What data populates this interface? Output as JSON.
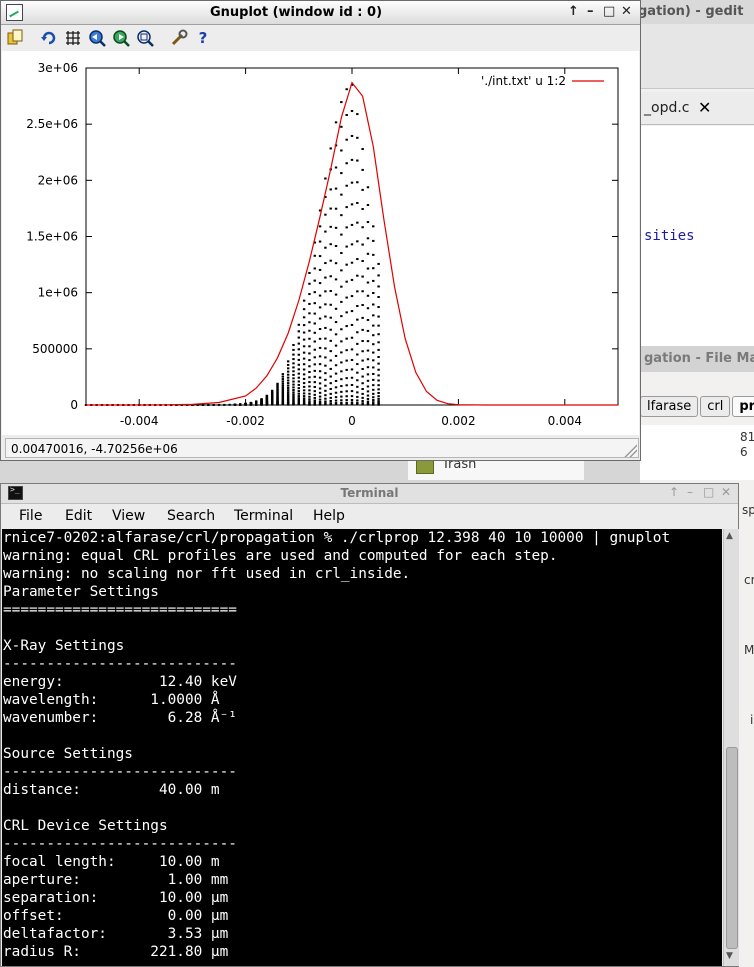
{
  "gedit": {
    "title": "gation) - gedit",
    "tab_label": "_opd.c",
    "tab_close": "✕",
    "code_fragment": "sities"
  },
  "file_manager": {
    "title": "gation - File Man",
    "path_crumbs": [
      "lfarase",
      "crl",
      "prop"
    ],
    "column_values": [
      "81",
      "6"
    ],
    "trash_label": "Trash"
  },
  "side_letters": [
    "sp",
    "cr",
    "M",
    "i"
  ],
  "gnuplot": {
    "title": "Gnuplot (window id : 0)",
    "window_buttons": [
      "↑",
      "–",
      "□",
      "✕"
    ],
    "toolbar_icons": [
      "copy-icon",
      "replot-icon",
      "grid-icon",
      "zoom-prev-icon",
      "zoom-next-icon",
      "autoscale-icon",
      "config-icon",
      "help-icon"
    ],
    "status": "0.00470016, -4.70256e+06"
  },
  "chart_data": {
    "type": "scatter",
    "xlim": [
      -0.005,
      0.005
    ],
    "ylim": [
      0,
      3000000
    ],
    "x_ticks": [
      -0.004,
      -0.002,
      0,
      0.002,
      0.004
    ],
    "x_tick_labels": [
      "-0.004",
      "-0.002",
      "0",
      "0.002",
      "0.004"
    ],
    "y_ticks": [
      0,
      500000,
      1000000,
      1500000,
      2000000,
      2500000,
      3000000
    ],
    "y_tick_labels": [
      "0",
      "500000",
      "1e+06",
      "1.5e+06",
      "2e+06",
      "2.5e+06",
      "3e+06"
    ],
    "legend": {
      "label": "'./int.txt' u 1:2",
      "color": "#e00000",
      "position": "top-right"
    },
    "curve": {
      "color": "#e00000",
      "x": [
        -0.005,
        -0.0045,
        -0.004,
        -0.0035,
        -0.003,
        -0.0025,
        -0.002,
        -0.0018,
        -0.0016,
        -0.0014,
        -0.0012,
        -0.001,
        -0.0008,
        -0.0006,
        -0.0004,
        -0.0002,
        0,
        0.0002,
        0.0004,
        0.0006,
        0.0008,
        0.001,
        0.0012,
        0.0014,
        0.0016,
        0.0018,
        0.002,
        0.0025,
        0.003,
        0.004,
        0.005
      ],
      "y": [
        0,
        0,
        0,
        1000,
        5000,
        22000,
        80000,
        150000,
        260000,
        420000,
        640000,
        930000,
        1280000,
        1680000,
        2100000,
        2560000,
        2870000,
        2750000,
        2300000,
        1650000,
        1050000,
        590000,
        290000,
        120000,
        42000,
        12000,
        3000,
        0,
        0,
        0,
        0
      ]
    },
    "points": {
      "color": "#000000",
      "x_range": [
        -0.005,
        0.0005
      ],
      "x_step": 0.0001,
      "series_count": 24,
      "peak_x": 0,
      "peak_y": 2850000
    }
  },
  "terminal": {
    "title": "Terminal",
    "window_buttons": [
      "↑",
      "–",
      "□",
      "✕"
    ],
    "menu": [
      "File",
      "Edit",
      "View",
      "Search",
      "Terminal",
      "Help"
    ],
    "lines": [
      "rnice7-0202:alfarase/crl/propagation % ./crlprop 12.398 40 10 10000 | gnuplot",
      "warning: equal CRL profiles are used and computed for each step.",
      "warning: no scaling nor fft used in crl_inside.",
      "Parameter Settings",
      "===========================",
      "",
      "X-Ray Settings",
      "---------------------------",
      "energy:           12.40 keV",
      "wavelength:      1.0000 Å",
      "wavenumber:        6.28 Å⁻¹",
      "",
      "Source Settings",
      "---------------------------",
      "distance:         40.00 m",
      "",
      "CRL Device Settings",
      "---------------------------",
      "focal length:     10.00 m",
      "aperture:          1.00 mm",
      "separation:       10.00 μm",
      "offset:            0.00 μm",
      "deltafactor:       3.53 μm",
      "radius R:        221.80 μm"
    ]
  }
}
